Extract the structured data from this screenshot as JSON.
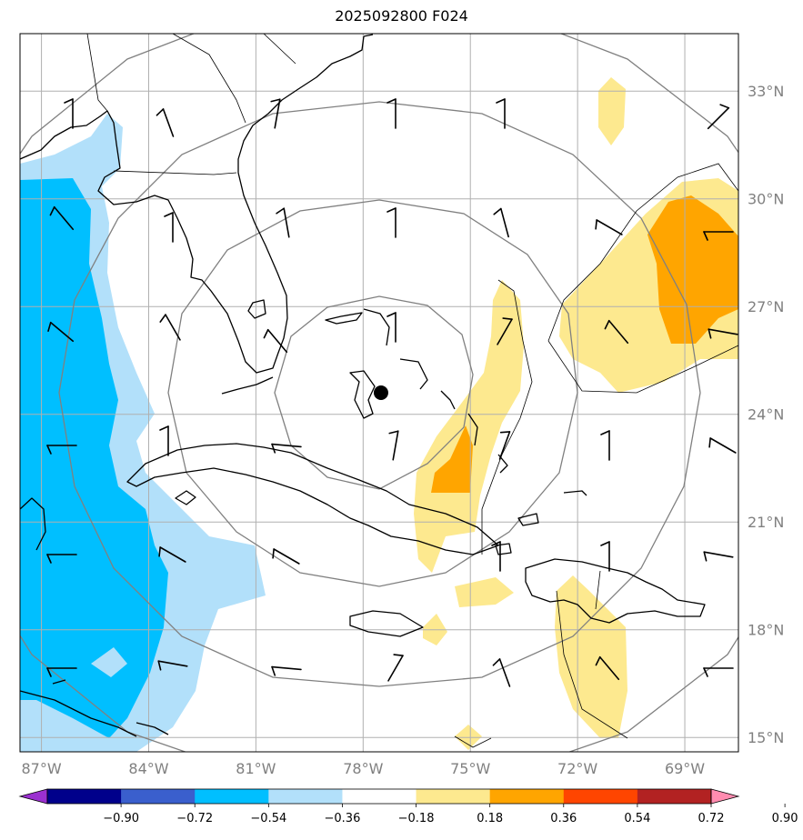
{
  "title": "2025092800 F024",
  "map": {
    "extent": {
      "lon_min": -87.6,
      "lon_max": -67.5,
      "lat_min": 14.6,
      "lat_max": 34.6
    },
    "grid_lons": [
      -87,
      -84,
      -81,
      -78,
      -75,
      -72,
      -69
    ],
    "grid_lats": [
      15,
      18,
      21,
      24,
      27,
      30,
      33
    ],
    "lon_labels": [
      "87°W",
      "84°W",
      "81°W",
      "78°W",
      "75°W",
      "72°W",
      "69°W"
    ],
    "lat_labels": [
      "15°N",
      "18°N",
      "21°N",
      "24°N",
      "27°N",
      "30°N",
      "33°N"
    ],
    "center_marker": {
      "lon": -77.5,
      "lat": 24.6
    },
    "range_rings_count": 4
  },
  "colorbar": {
    "ticks": [
      "−0.90",
      "−0.72",
      "−0.54",
      "−0.36",
      "−0.18",
      "0.18",
      "0.36",
      "0.54",
      "0.72",
      "0.90"
    ],
    "colors": [
      "#9b30d0",
      "#00008b",
      "#3a5fcd",
      "#00bfff",
      "#b2e0fa",
      "#ffffff",
      "#fde98f",
      "#ffa500",
      "#ff4500",
      "#b22222",
      "#ff8cb0"
    ]
  },
  "colors": {
    "ring": "#808080",
    "grid": "#b0b0b0",
    "coast": "#000000"
  }
}
